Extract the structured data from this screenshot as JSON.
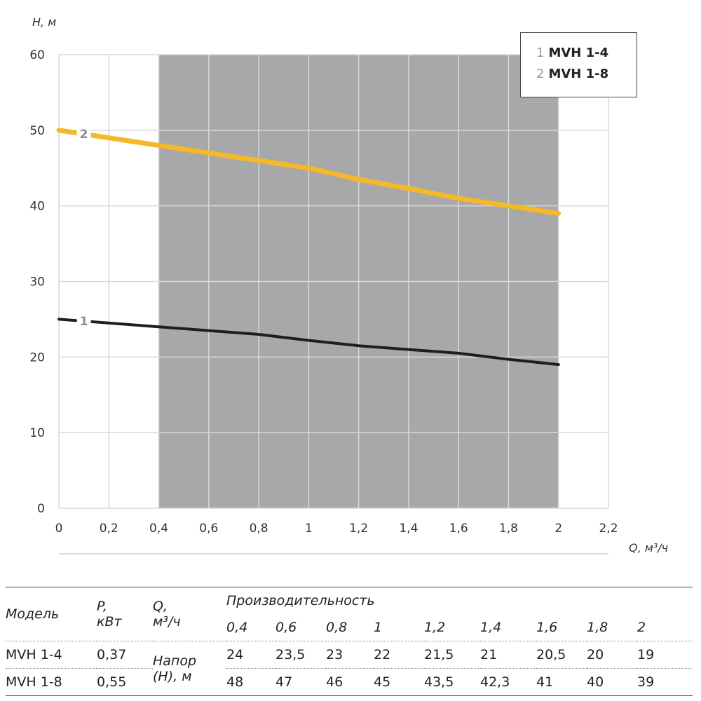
{
  "chart_data": {
    "type": "line",
    "ylabel": "H, м",
    "xlabel": "Q, м³/ч",
    "xlim": [
      0,
      2.2
    ],
    "ylim": [
      0,
      60
    ],
    "x_ticks": [
      "0",
      "0,2",
      "0,4",
      "0,6",
      "0,8",
      "1",
      "1,2",
      "1,4",
      "1,6",
      "1,8",
      "2",
      "2,2"
    ],
    "y_ticks": [
      "0",
      "10",
      "20",
      "30",
      "40",
      "50",
      "60"
    ],
    "grid": true,
    "shaded_range": [
      0.4,
      2.0
    ],
    "shade_color": "#a6a8a9",
    "legend_position": "top-right",
    "series": [
      {
        "name": "MVH 1-4",
        "label": "1",
        "color": "#1e1e1e",
        "x": [
          0,
          0.4,
          0.6,
          0.8,
          1,
          1.2,
          1.4,
          1.6,
          1.8,
          2
        ],
        "y": [
          25,
          24,
          23.5,
          23,
          22.2,
          21.5,
          21,
          20.5,
          19.7,
          19
        ]
      },
      {
        "name": "MVH 1-8",
        "label": "2",
        "color": "#f5b928",
        "x": [
          0,
          0.4,
          0.6,
          0.8,
          1,
          1.2,
          1.4,
          1.6,
          1.8,
          2
        ],
        "y": [
          50,
          48,
          47,
          46,
          45,
          43.5,
          42.3,
          41,
          40,
          39
        ]
      }
    ]
  },
  "legend": [
    {
      "num": "1",
      "name": "MVH 1-4"
    },
    {
      "num": "2",
      "name": "MVH 1-8"
    }
  ],
  "table": {
    "col_model": "Модель",
    "col_power_1": "P,",
    "col_power_2": "кВт",
    "col_q_1": "Q,",
    "col_q_2": "м³/ч",
    "col_perf": "Производительность",
    "q_values": [
      "0,4",
      "0,6",
      "0,8",
      "1",
      "1,2",
      "1,4",
      "1,6",
      "1,8",
      "2"
    ],
    "head_label_1": "Напор",
    "head_label_2": "(Н), м",
    "rows": [
      {
        "model": "MVH 1-4",
        "power": "0,37",
        "values": [
          "24",
          "23,5",
          "23",
          "22",
          "21,5",
          "21",
          "20,5",
          "20",
          "19"
        ]
      },
      {
        "model": "MVH 1-8",
        "power": "0,55",
        "values": [
          "48",
          "47",
          "46",
          "45",
          "43,5",
          "42,3",
          "41",
          "40",
          "39"
        ]
      }
    ]
  }
}
